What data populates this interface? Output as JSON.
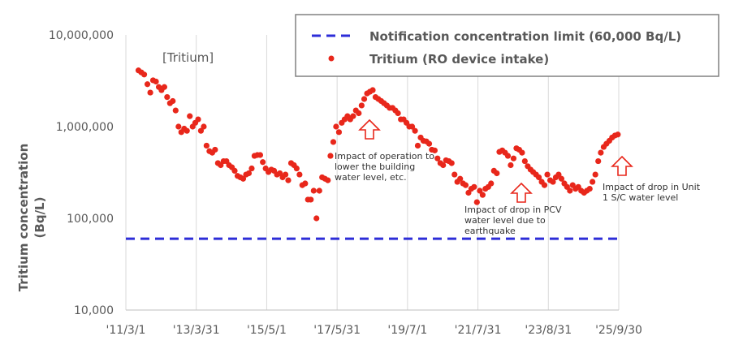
{
  "chart_data": {
    "type": "scatter",
    "tag": "[Tritium]",
    "ylabel_lines": [
      "Tritium concentration",
      "(Bq/L)"
    ],
    "yscale": "log",
    "ylim": [
      10000,
      10000000
    ],
    "y_ticks": [
      {
        "value": 10000,
        "label": "10,000"
      },
      {
        "value": 100000,
        "label": "100,000"
      },
      {
        "value": 1000000,
        "label": "1,000,000"
      },
      {
        "value": 10000000,
        "label": "10,000,000"
      }
    ],
    "xlim": [
      "2011-03-01",
      "2025-09-30"
    ],
    "x_ticks": [
      {
        "date": "2011-03-01",
        "label": "'11/3/1"
      },
      {
        "date": "2013-03-31",
        "label": "'13/3/31"
      },
      {
        "date": "2015-05-01",
        "label": "'15/5/1"
      },
      {
        "date": "2017-05-31",
        "label": "'17/5/31"
      },
      {
        "date": "2019-07-01",
        "label": "'19/7/1"
      },
      {
        "date": "2021-07-31",
        "label": "'21/7/31"
      },
      {
        "date": "2023-08-31",
        "label": "'23/8/31"
      },
      {
        "date": "2025-09-30",
        "label": "'25/9/30"
      }
    ],
    "grid": "vertical",
    "legend_position": "top-right",
    "series": [
      {
        "name": "Notification concentration limit (60,000 Bq/L)",
        "kind": "dashed-line",
        "color": "#2d2dd8",
        "y": 60000
      },
      {
        "name": "Tritium (RO device intake)",
        "kind": "scatter",
        "color": "#e8271b",
        "points": [
          [
            "2011-07-15",
            4100000
          ],
          [
            "2011-08-15",
            3900000
          ],
          [
            "2011-09-15",
            3700000
          ],
          [
            "2011-10-20",
            2900000
          ],
          [
            "2011-11-20",
            2350000
          ],
          [
            "2011-12-20",
            3200000
          ],
          [
            "2012-01-20",
            3100000
          ],
          [
            "2012-02-20",
            2700000
          ],
          [
            "2012-03-20",
            2500000
          ],
          [
            "2012-04-20",
            2700000
          ],
          [
            "2012-05-20",
            2100000
          ],
          [
            "2012-06-20",
            1800000
          ],
          [
            "2012-07-20",
            1900000
          ],
          [
            "2012-08-20",
            1500000
          ],
          [
            "2012-09-20",
            1000000
          ],
          [
            "2012-10-20",
            870000
          ],
          [
            "2012-11-20",
            950000
          ],
          [
            "2012-12-20",
            900000
          ],
          [
            "2013-01-20",
            1300000
          ],
          [
            "2013-02-20",
            1000000
          ],
          [
            "2013-03-20",
            1100000
          ],
          [
            "2013-04-20",
            1200000
          ],
          [
            "2013-05-20",
            900000
          ],
          [
            "2013-06-20",
            1000000
          ],
          [
            "2013-07-20",
            620000
          ],
          [
            "2013-08-20",
            540000
          ],
          [
            "2013-09-20",
            520000
          ],
          [
            "2013-10-20",
            560000
          ],
          [
            "2013-11-20",
            400000
          ],
          [
            "2013-12-20",
            380000
          ],
          [
            "2014-01-20",
            420000
          ],
          [
            "2014-02-20",
            420000
          ],
          [
            "2014-03-20",
            380000
          ],
          [
            "2014-04-20",
            360000
          ],
          [
            "2014-05-20",
            330000
          ],
          [
            "2014-06-20",
            290000
          ],
          [
            "2014-07-20",
            280000
          ],
          [
            "2014-08-20",
            270000
          ],
          [
            "2014-09-20",
            300000
          ],
          [
            "2014-10-20",
            310000
          ],
          [
            "2014-11-20",
            350000
          ],
          [
            "2014-12-20",
            480000
          ],
          [
            "2015-01-20",
            490000
          ],
          [
            "2015-02-20",
            490000
          ],
          [
            "2015-03-20",
            410000
          ],
          [
            "2015-04-20",
            350000
          ],
          [
            "2015-05-20",
            320000
          ],
          [
            "2015-06-20",
            340000
          ],
          [
            "2015-07-20",
            330000
          ],
          [
            "2015-08-20",
            300000
          ],
          [
            "2015-09-20",
            310000
          ],
          [
            "2015-10-20",
            280000
          ],
          [
            "2015-11-20",
            300000
          ],
          [
            "2015-12-20",
            260000
          ],
          [
            "2016-01-20",
            400000
          ],
          [
            "2016-02-20",
            380000
          ],
          [
            "2016-03-20",
            350000
          ],
          [
            "2016-04-20",
            300000
          ],
          [
            "2016-05-20",
            230000
          ],
          [
            "2016-06-20",
            240000
          ],
          [
            "2016-07-20",
            160000
          ],
          [
            "2016-08-20",
            160000
          ],
          [
            "2016-09-20",
            200000
          ],
          [
            "2016-10-20",
            100000
          ],
          [
            "2016-11-20",
            200000
          ],
          [
            "2016-12-20",
            280000
          ],
          [
            "2017-01-20",
            270000
          ],
          [
            "2017-02-20",
            260000
          ],
          [
            "2017-03-20",
            480000
          ],
          [
            "2017-04-20",
            680000
          ],
          [
            "2017-05-20",
            1000000
          ],
          [
            "2017-06-20",
            870000
          ],
          [
            "2017-07-20",
            1100000
          ],
          [
            "2017-08-20",
            1200000
          ],
          [
            "2017-09-20",
            1300000
          ],
          [
            "2017-10-20",
            1200000
          ],
          [
            "2017-11-20",
            1300000
          ],
          [
            "2017-12-20",
            1500000
          ],
          [
            "2018-01-20",
            1400000
          ],
          [
            "2018-02-20",
            1700000
          ],
          [
            "2018-03-20",
            2000000
          ],
          [
            "2018-04-20",
            2300000
          ],
          [
            "2018-05-20",
            2400000
          ],
          [
            "2018-06-20",
            2500000
          ],
          [
            "2018-07-20",
            2100000
          ],
          [
            "2018-08-20",
            2000000
          ],
          [
            "2018-09-20",
            1900000
          ],
          [
            "2018-10-20",
            1800000
          ],
          [
            "2018-11-20",
            1700000
          ],
          [
            "2018-12-20",
            1600000
          ],
          [
            "2019-01-20",
            1600000
          ],
          [
            "2019-02-20",
            1500000
          ],
          [
            "2019-03-20",
            1400000
          ],
          [
            "2019-04-20",
            1200000
          ],
          [
            "2019-05-20",
            1200000
          ],
          [
            "2019-06-20",
            1100000
          ],
          [
            "2019-07-20",
            1000000
          ],
          [
            "2019-08-20",
            1000000
          ],
          [
            "2019-09-20",
            900000
          ],
          [
            "2019-10-20",
            620000
          ],
          [
            "2019-11-20",
            760000
          ],
          [
            "2019-12-20",
            700000
          ],
          [
            "2020-01-20",
            690000
          ],
          [
            "2020-02-20",
            650000
          ],
          [
            "2020-03-20",
            560000
          ],
          [
            "2020-04-20",
            550000
          ],
          [
            "2020-05-20",
            450000
          ],
          [
            "2020-06-20",
            400000
          ],
          [
            "2020-07-20",
            380000
          ],
          [
            "2020-08-20",
            430000
          ],
          [
            "2020-09-20",
            420000
          ],
          [
            "2020-10-20",
            400000
          ],
          [
            "2020-11-20",
            300000
          ],
          [
            "2020-12-20",
            250000
          ],
          [
            "2021-01-20",
            270000
          ],
          [
            "2021-02-20",
            240000
          ],
          [
            "2021-03-20",
            230000
          ],
          [
            "2021-04-20",
            190000
          ],
          [
            "2021-05-20",
            210000
          ],
          [
            "2021-06-20",
            220000
          ],
          [
            "2021-07-20",
            150000
          ],
          [
            "2021-08-20",
            200000
          ],
          [
            "2021-09-20",
            180000
          ],
          [
            "2021-10-20",
            210000
          ],
          [
            "2021-11-20",
            220000
          ],
          [
            "2021-12-20",
            240000
          ],
          [
            "2022-01-20",
            330000
          ],
          [
            "2022-02-20",
            310000
          ],
          [
            "2022-03-20",
            530000
          ],
          [
            "2022-04-20",
            550000
          ],
          [
            "2022-05-20",
            520000
          ],
          [
            "2022-06-20",
            480000
          ],
          [
            "2022-07-20",
            380000
          ],
          [
            "2022-08-20",
            450000
          ],
          [
            "2022-09-20",
            580000
          ],
          [
            "2022-10-20",
            560000
          ],
          [
            "2022-11-20",
            520000
          ],
          [
            "2022-12-20",
            420000
          ],
          [
            "2023-01-20",
            370000
          ],
          [
            "2023-02-20",
            340000
          ],
          [
            "2023-03-20",
            320000
          ],
          [
            "2023-04-20",
            300000
          ],
          [
            "2023-05-20",
            280000
          ],
          [
            "2023-06-20",
            250000
          ],
          [
            "2023-07-20",
            230000
          ],
          [
            "2023-08-20",
            300000
          ],
          [
            "2023-09-20",
            260000
          ],
          [
            "2023-10-20",
            250000
          ],
          [
            "2023-11-20",
            280000
          ],
          [
            "2023-12-20",
            300000
          ],
          [
            "2024-01-20",
            270000
          ],
          [
            "2024-02-20",
            240000
          ],
          [
            "2024-03-20",
            220000
          ],
          [
            "2024-04-20",
            200000
          ],
          [
            "2024-05-20",
            230000
          ],
          [
            "2024-06-20",
            210000
          ],
          [
            "2024-07-20",
            220000
          ],
          [
            "2024-08-20",
            200000
          ],
          [
            "2024-09-20",
            190000
          ],
          [
            "2024-10-20",
            200000
          ],
          [
            "2024-11-20",
            210000
          ],
          [
            "2024-12-20",
            250000
          ],
          [
            "2025-01-20",
            300000
          ],
          [
            "2025-02-20",
            420000
          ],
          [
            "2025-03-20",
            520000
          ],
          [
            "2025-04-20",
            600000
          ],
          [
            "2025-05-20",
            650000
          ],
          [
            "2025-06-20",
            700000
          ],
          [
            "2025-07-20",
            760000
          ],
          [
            "2025-08-20",
            800000
          ],
          [
            "2025-09-20",
            820000
          ]
        ]
      }
    ],
    "annotations": [
      {
        "text_lines": [
          "Impact of operation to",
          "lower the building",
          "water level, etc."
        ],
        "arrow": "up"
      },
      {
        "text_lines": [
          "Impact of drop in PCV",
          "water level due to",
          "earthquake"
        ],
        "arrow": "up"
      },
      {
        "text_lines": [
          "Impact of drop in Unit",
          "1 S/C water level"
        ],
        "arrow": "up"
      }
    ]
  }
}
